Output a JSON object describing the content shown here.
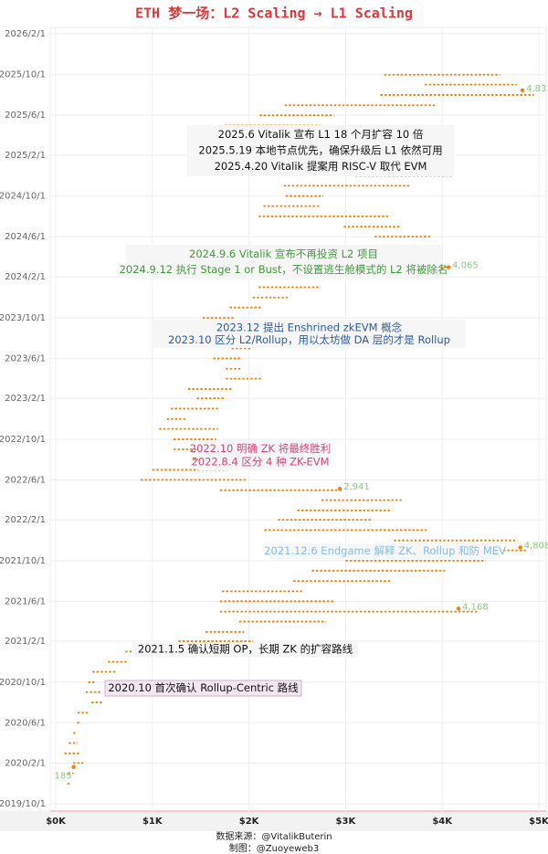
{
  "chart_data": {
    "type": "range",
    "title": "ETH 梦一场：L2 Scaling → L1 Scaling",
    "footer": [
      "数据来源：@VitalikButerin",
      "制图：@Zuoyeweb3"
    ],
    "color": "#e8830c",
    "grid": true,
    "x": [
      "2019/12/1",
      "2020/1/1",
      "2020/2/1",
      "2020/3/1",
      "2020/4/1",
      "2020/5/1",
      "2020/6/1",
      "2020/7/1",
      "2020/8/1",
      "2020/9/1",
      "2020/10/1",
      "2020/11/1",
      "2020/12/1",
      "2021/1/1",
      "2021/2/1",
      "2021/3/1",
      "2021/4/1",
      "2021/5/1",
      "2021/6/1",
      "2021/7/1",
      "2021/8/1",
      "2021/9/1",
      "2021/10/1",
      "2021/11/1",
      "2021/12/1",
      "2022/1/1",
      "2022/2/1",
      "2022/3/1",
      "2022/4/1",
      "2022/5/1",
      "2022/6/1",
      "2022/7/1",
      "2022/8/1",
      "2022/9/1",
      "2022/10/1",
      "2022/11/1",
      "2022/12/1",
      "2023/1/1",
      "2023/2/1",
      "2023/3/1",
      "2023/4/1",
      "2023/5/1",
      "2023/6/1",
      "2023/7/1",
      "2023/8/1",
      "2023/9/1",
      "2023/10/1",
      "2023/11/1",
      "2023/12/1",
      "2024/1/1",
      "2024/2/1",
      "2024/3/1",
      "2024/4/1",
      "2024/5/1",
      "2024/6/1",
      "2024/7/1",
      "2024/8/1",
      "2024/9/1",
      "2024/10/1",
      "2024/11/1",
      "2024/12/1",
      "2025/1/1",
      "2025/2/1",
      "2025/3/1",
      "2025/4/1",
      "2025/5/1",
      "2025/6/1",
      "2025/7/1",
      "2025/8/1",
      "2025/9/1",
      "2025/10/1"
    ],
    "low": [
      120,
      127,
      180,
      90,
      135,
      180,
      220,
      225,
      370,
      310,
      335,
      380,
      540,
      720,
      1270,
      1550,
      1900,
      1700,
      1700,
      1720,
      2460,
      2650,
      3000,
      3950,
      3500,
      2160,
      2300,
      2500,
      2750,
      1700,
      880,
      1000,
      1420,
      1220,
      1220,
      1070,
      1150,
      1190,
      1460,
      1370,
      1760,
      1760,
      1630,
      1820,
      1550,
      1530,
      1520,
      1800,
      2040,
      2100,
      2270,
      3050,
      2850,
      2810,
      3300,
      2980,
      2100,
      2150,
      2380,
      2360,
      3100,
      2920,
      2100,
      1750,
      1380,
      1750,
      2110,
      2370,
      3360,
      3820,
      3400
    ],
    "high": [
      155,
      185,
      285,
      250,
      225,
      215,
      250,
      350,
      490,
      480,
      420,
      620,
      750,
      1470,
      2040,
      1950,
      2800,
      4370,
      2890,
      2550,
      3470,
      4030,
      4450,
      4870,
      4780,
      3840,
      3280,
      3480,
      3580,
      2960,
      1970,
      1780,
      2030,
      1790,
      1660,
      1680,
      1350,
      1680,
      1740,
      1830,
      2140,
      1930,
      1930,
      2030,
      1860,
      1680,
      1860,
      2130,
      2400,
      2720,
      3520,
      4090,
      3730,
      3980,
      3880,
      3560,
      3450,
      2730,
      2770,
      3680,
      4110,
      3750,
      3340,
      2550,
      1950,
      2740,
      2880,
      3940,
      4950,
      4770,
      4600
    ],
    "highlights": [
      {
        "x": "2020/1/20",
        "value": 185,
        "label": "185"
      },
      {
        "x": "2021/5/10",
        "value": 4168,
        "label": "4,168"
      },
      {
        "x": "2021/11/10",
        "value": 4808,
        "label": "4,808"
      },
      {
        "x": "2022/5/5",
        "value": 2941,
        "label": "2,941"
      },
      {
        "x": "2024/3/1",
        "value": 4065,
        "label": "4,065"
      },
      {
        "x": "2025/8/15",
        "value": 4831,
        "label": "4,831"
      }
    ],
    "annotations": [
      {
        "lines": [
          "2025.6 Vitalik 宣布 L1 18 个月扩容 10 倍",
          "2025.5.19 本地节点优先，确保升级后 L1 依然可用",
          "2025.4.20 Vitalik 提案用 RISC-V 取代 EVM"
        ],
        "color": "#111111"
      },
      {
        "lines": [
          "2024.9.6 Vitalik 宣布不再投资 L2 项目",
          "2024.9.12 执行 Stage 1 or Bust，不设置逃生舱模式的 L2 将被除名"
        ],
        "color": "#3f9a3a"
      },
      {
        "lines": [
          "2023.12 提出 Enshrined zkEVM 概念",
          "2023.10 区分 L2/Rollup，用以太坊做 DA 层的才是 Rollup"
        ],
        "color": "#2b5d9c"
      },
      {
        "lines": [
          "2022.10 明确 ZK 将最终胜利",
          "2022.8.4 区分 4 种 ZK-EVM"
        ],
        "color": "#d2457a"
      },
      {
        "lines": [
          "2021.12.6 Endgame 解释 ZK、Rollup 和防 MEV"
        ],
        "color": "#86bde0"
      },
      {
        "lines": [
          "2021.1.5 确认短期 OP，长期 ZK 的扩容路线"
        ],
        "color": "#111111"
      },
      {
        "lines": [
          "2020.10 首次确认 Rollup-Centric 路线"
        ],
        "color": "#111111"
      }
    ],
    "xlim": [
      -57,
      5076
    ],
    "xticks": [
      {
        "value": 0,
        "label": "$0K"
      },
      {
        "value": 1000,
        "label": "$1K"
      },
      {
        "value": 2000,
        "label": "$2K"
      },
      {
        "value": 3000,
        "label": "$3K"
      },
      {
        "value": 4000,
        "label": "$4K"
      },
      {
        "value": 5000,
        "label": "$5K"
      }
    ],
    "ylim": [
      "2019/9/4",
      "2026/2/20"
    ],
    "yticks": [
      "2019/10/1",
      "2020/2/1",
      "2020/6/1",
      "2020/10/1",
      "2021/2/1",
      "2021/6/1",
      "2021/10/1",
      "2022/2/1",
      "2022/6/1",
      "2022/10/1",
      "2023/2/1",
      "2023/6/1",
      "2023/10/1",
      "2024/2/1",
      "2024/6/1",
      "2024/10/1",
      "2025/2/1",
      "2025/6/1",
      "2025/10/1",
      "2026/2/1"
    ]
  }
}
